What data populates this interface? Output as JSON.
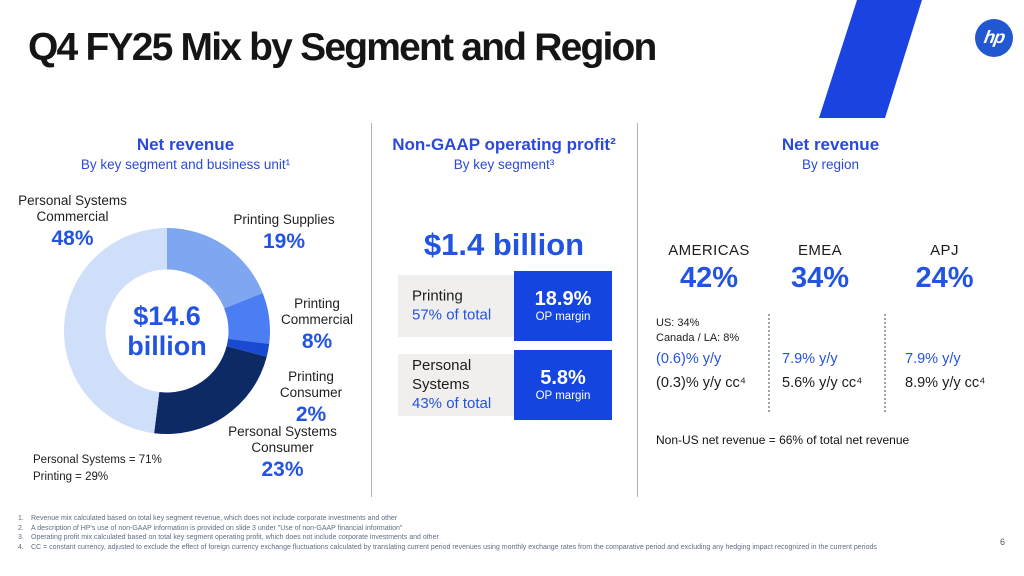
{
  "header": {
    "title": "Q4 FY25 Mix by Segment and Region",
    "logo_text": "hp",
    "page_number": "6"
  },
  "colors": {
    "text_blue": "#2c49d8",
    "value_blue": "#2253e2",
    "box_blue": "#1545e0",
    "stripe_blue": "#1a43e2",
    "logo_blue": "#2257d2",
    "navy": "#0d2a66",
    "card_gray": "#f0efed"
  },
  "left_panel": {
    "heading": "Net revenue",
    "subheading": "By key segment and business unit¹",
    "center_label": "$14.6\nbillion",
    "labels": [
      {
        "name": "Personal Systems\nCommercial",
        "pct": "48%"
      },
      {
        "name": "Printing Supplies",
        "pct": "19%"
      },
      {
        "name": "Printing\nCommercial",
        "pct": "8%"
      },
      {
        "name": "Printing\nConsumer",
        "pct": "2%"
      },
      {
        "name": "Personal Systems\nConsumer",
        "pct": "23%"
      }
    ],
    "totals_text": "Personal Systems = 71%\nPrinting = 29%"
  },
  "middle_panel": {
    "heading": "Non-GAAP operating profit²",
    "subheading": "By key segment³",
    "total": "$1.4 billion",
    "rows": [
      {
        "name": "Printing",
        "share": "57% of total",
        "margin": "18.9%",
        "margin_label": "OP margin"
      },
      {
        "name": "Personal\nSystems",
        "share": "43% of total",
        "margin": "5.8%",
        "margin_label": "OP margin"
      }
    ]
  },
  "right_panel": {
    "heading": "Net revenue",
    "subheading": "By region",
    "regions": [
      {
        "name": "AMERICAS",
        "pct": "42%",
        "detail": "US: 34%\nCanada / LA: 8%",
        "yoy": "(0.6)% y/y",
        "yoy_cc": "(0.3)% y/y cc⁴"
      },
      {
        "name": "EMEA",
        "pct": "34%",
        "yoy": "7.9% y/y",
        "yoy_cc": "5.6% y/y cc⁴"
      },
      {
        "name": "APJ",
        "pct": "24%",
        "yoy": "7.9% y/y",
        "yoy_cc": "8.9% y/y cc⁴"
      }
    ],
    "note": "Non-US net revenue = 66% of total net revenue"
  },
  "footnotes": [
    {
      "n": "1.",
      "text": "Revenue mix calculated based on total key segment revenue, which does not include corporate investments and other"
    },
    {
      "n": "2.",
      "text": "A description of HP's use of non-GAAP information is provided on slide 3 under \"Use of non-GAAP financial information\""
    },
    {
      "n": "3.",
      "text": "Operating profit mix calculated based on total key segment operating profit, which does not include corporate investments and other"
    },
    {
      "n": "4.",
      "text": "CC = constant currency, adjusted to exclude the effect of foreign currency exchange fluctuations calculated by translating current period revenues using monthly exchange rates from the comparative period and excluding any hedging impact recognized in the current periods"
    }
  ],
  "chart_data": [
    {
      "type": "pie",
      "variant": "donut",
      "title": "Net revenue",
      "subtitle": "By key segment and business unit¹",
      "center_label": "$14.6 billion",
      "units": "% of net revenue",
      "start": "12 o'clock, clockwise",
      "segments": [
        {
          "label": "Printing Supplies",
          "value": 19,
          "color": "#7fa6f1"
        },
        {
          "label": "Printing Commercial",
          "value": 8,
          "color": "#4a7ef2"
        },
        {
          "label": "Printing Consumer",
          "value": 2,
          "color": "#1b4ad2"
        },
        {
          "label": "Personal Systems Consumer",
          "value": 23,
          "color": "#0d2a66"
        },
        {
          "label": "Personal Systems Commercial",
          "value": 48,
          "color": "#cfdef9"
        }
      ],
      "aggregates": [
        {
          "label": "Personal Systems",
          "value": 71
        },
        {
          "label": "Printing",
          "value": 29
        }
      ]
    },
    {
      "type": "table",
      "title": "Non-GAAP operating profit²",
      "subtitle": "By key segment³",
      "total": "$1.4 billion",
      "rows": [
        {
          "segment": "Printing",
          "share_of_total_pct": 57,
          "op_margin_pct": 18.9
        },
        {
          "segment": "Personal Systems",
          "share_of_total_pct": 43,
          "op_margin_pct": 5.8
        }
      ]
    },
    {
      "type": "table",
      "title": "Net revenue",
      "subtitle": "By region",
      "rows": [
        {
          "region": "AMERICAS",
          "share_pct": 42,
          "yoy_pct": -0.6,
          "yoy_cc_pct": -0.3,
          "detail": "US: 34%, Canada / LA: 8%"
        },
        {
          "region": "EMEA",
          "share_pct": 34,
          "yoy_pct": 7.9,
          "yoy_cc_pct": 5.6
        },
        {
          "region": "APJ",
          "share_pct": 24,
          "yoy_pct": 7.9,
          "yoy_cc_pct": 8.9
        }
      ],
      "note": "Non-US net revenue = 66% of total net revenue"
    }
  ]
}
